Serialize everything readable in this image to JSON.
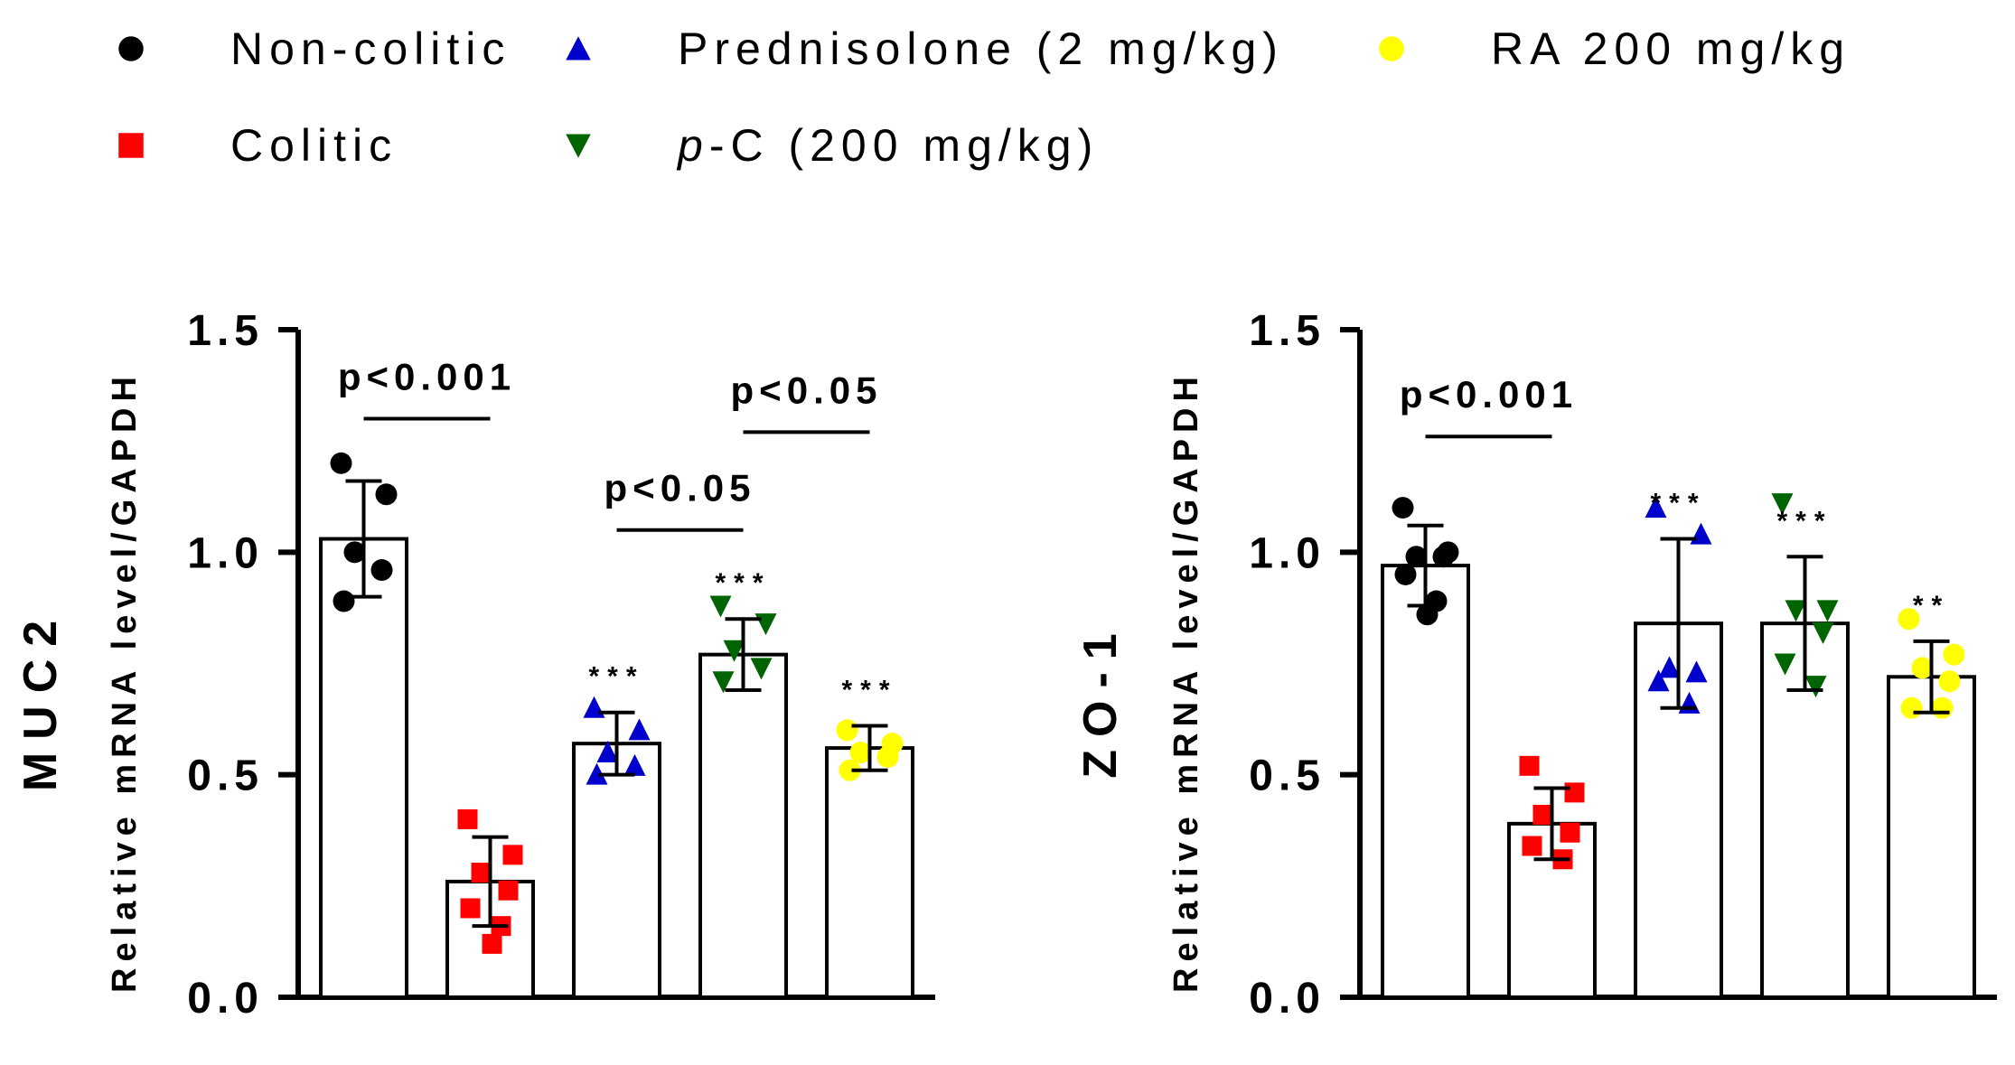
{
  "legend": {
    "items": [
      {
        "key": "noncolitic",
        "label": "Non-colitic",
        "marker": "circle",
        "color": "#000000"
      },
      {
        "key": "colitic",
        "label": "Colitic",
        "marker": "square",
        "color": "#ff0000"
      },
      {
        "key": "prednisolone",
        "label": "Prednisolone (2 mg/kg)",
        "marker": "triangle-up",
        "color": "#0000cc"
      },
      {
        "key": "pc",
        "label_prefix": "p",
        "label_rest": "-C (200 mg/kg)",
        "label": "p-C (200 mg/kg)",
        "marker": "triangle-down",
        "color": "#006400"
      },
      {
        "key": "ra",
        "label": "RA 200 mg/kg",
        "marker": "circle",
        "color": "#ffff00"
      }
    ]
  },
  "chart_data": [
    {
      "type": "bar",
      "title": "MUC2",
      "ylabel": "Relative mRNA level/GAPDH",
      "ylim": [
        0,
        1.5
      ],
      "yticks": [
        "0.0",
        "0.5",
        "1.0",
        "1.5"
      ],
      "categories": [
        "Non-colitic",
        "Colitic",
        "Prednisolone (2 mg/kg)",
        "p-C (200 mg/kg)",
        "RA 200 mg/kg"
      ],
      "values": [
        1.03,
        0.26,
        0.57,
        0.77,
        0.56
      ],
      "errors": [
        0.13,
        0.1,
        0.07,
        0.08,
        0.05
      ],
      "points": [
        [
          1.2,
          1.13,
          1.0,
          0.96,
          0.89
        ],
        [
          0.4,
          0.32,
          0.28,
          0.24,
          0.2,
          0.16,
          0.12
        ],
        [
          0.65,
          0.6,
          0.55,
          0.52,
          0.5
        ],
        [
          0.88,
          0.84,
          0.78,
          0.74,
          0.71
        ],
        [
          0.6,
          0.57,
          0.55,
          0.54,
          0.51
        ]
      ],
      "significance": [
        "",
        "",
        "***",
        "***",
        "***"
      ],
      "brackets": [
        {
          "from": 0,
          "to": 1,
          "y": 1.3,
          "label": "p<0.001"
        },
        {
          "from": 2,
          "to": 3,
          "y": 1.05,
          "label": "p<0.05"
        },
        {
          "from": 3,
          "to": 4,
          "y": 1.27,
          "label": "p<0.05"
        }
      ]
    },
    {
      "type": "bar",
      "title": "ZO-1",
      "ylabel": "Relative mRNA level/GAPDH",
      "ylim": [
        0,
        1.5
      ],
      "yticks": [
        "0.0",
        "0.5",
        "1.0",
        "1.5"
      ],
      "categories": [
        "Non-colitic",
        "Colitic",
        "Prednisolone (2 mg/kg)",
        "p-C (200 mg/kg)",
        "RA 200 mg/kg"
      ],
      "values": [
        0.97,
        0.39,
        0.84,
        0.84,
        0.72
      ],
      "errors": [
        0.09,
        0.08,
        0.19,
        0.15,
        0.08
      ],
      "points": [
        [
          1.1,
          1.0,
          0.99,
          0.99,
          0.95,
          0.89,
          0.86
        ],
        [
          0.52,
          0.46,
          0.41,
          0.37,
          0.34,
          0.31
        ],
        [
          1.1,
          1.04,
          0.74,
          0.73,
          0.71,
          0.66
        ],
        [
          1.11,
          0.87,
          0.87,
          0.82,
          0.75,
          0.7
        ],
        [
          0.85,
          0.77,
          0.74,
          0.71,
          0.65,
          0.65
        ]
      ],
      "significance": [
        "",
        "",
        "***",
        "***",
        "**"
      ],
      "brackets": [
        {
          "from": 0,
          "to": 1,
          "y": 1.26,
          "label": "p<0.001"
        }
      ]
    }
  ]
}
